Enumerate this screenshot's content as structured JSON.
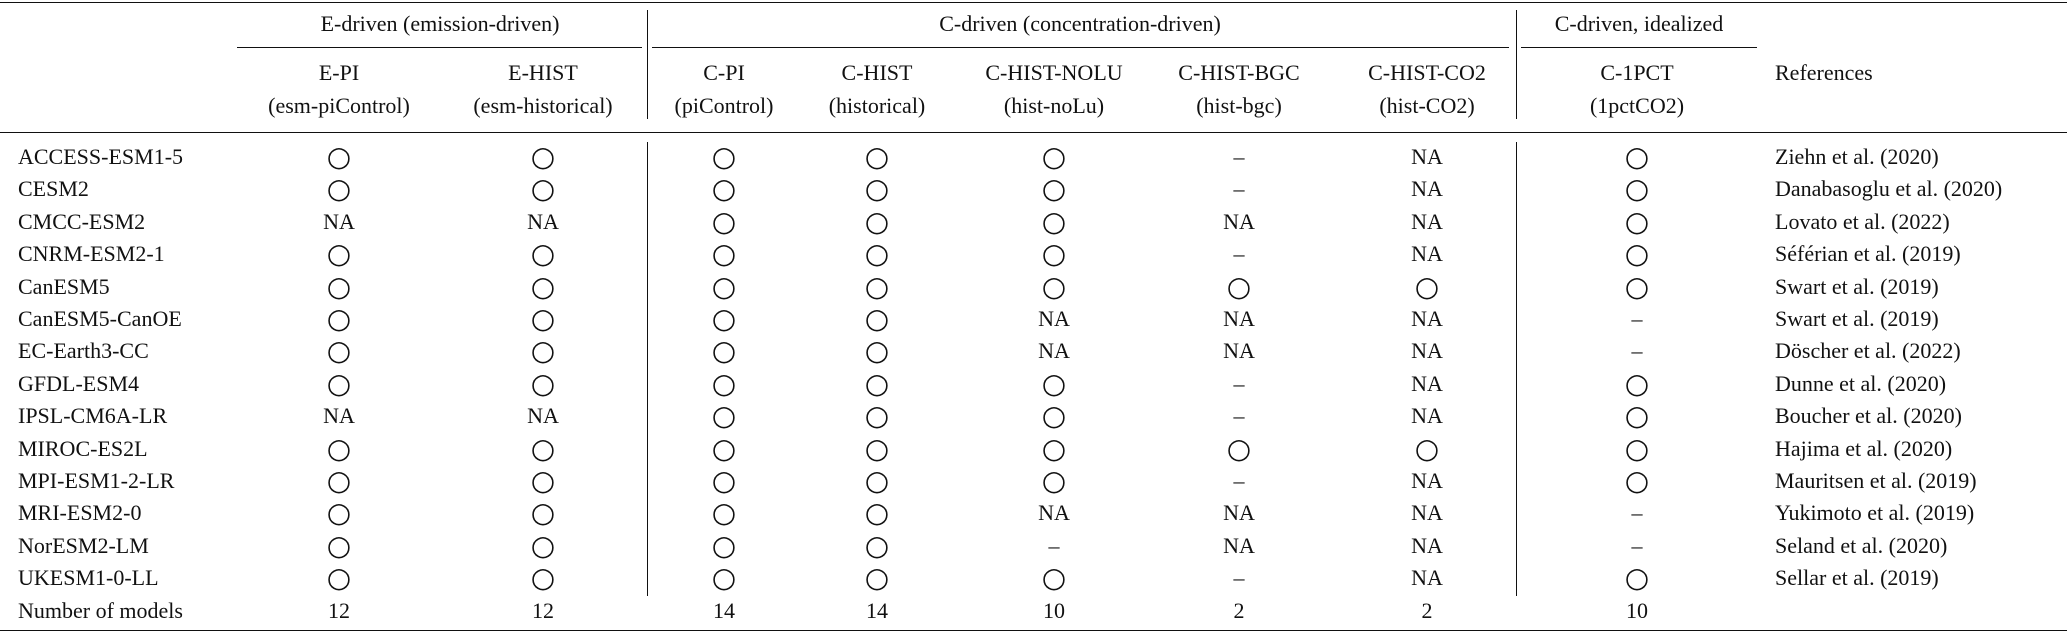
{
  "table": {
    "groups": [
      "E-driven (emission-driven)",
      "C-driven (concentration-driven)",
      "C-driven, idealized"
    ],
    "columns": [
      {
        "name": "E-PI",
        "alias": "(esm-piControl)"
      },
      {
        "name": "E-HIST",
        "alias": "(esm-historical)"
      },
      {
        "name": "C-PI",
        "alias": "(piControl)"
      },
      {
        "name": "C-HIST",
        "alias": "(historical)"
      },
      {
        "name": "C-HIST-NOLU",
        "alias": "(hist-noLu)"
      },
      {
        "name": "C-HIST-BGC",
        "alias": "(hist-bgc)"
      },
      {
        "name": "C-HIST-CO2",
        "alias": "(hist-CO2)"
      },
      {
        "name": "C-1PCT",
        "alias": "(1pctCO2)"
      }
    ],
    "references_header": "References",
    "rows": [
      {
        "model": "ACCESS-ESM1-5",
        "cells": [
          "○",
          "○",
          "○",
          "○",
          "○",
          "–",
          "NA",
          "○"
        ],
        "reference": "Ziehn et al. (2020)"
      },
      {
        "model": "CESM2",
        "cells": [
          "○",
          "○",
          "○",
          "○",
          "○",
          "–",
          "NA",
          "○"
        ],
        "reference": "Danabasoglu et al. (2020)"
      },
      {
        "model": "CMCC-ESM2",
        "cells": [
          "NA",
          "NA",
          "○",
          "○",
          "○",
          "NA",
          "NA",
          "○"
        ],
        "reference": "Lovato et al. (2022)"
      },
      {
        "model": "CNRM-ESM2-1",
        "cells": [
          "○",
          "○",
          "○",
          "○",
          "○",
          "–",
          "NA",
          "○"
        ],
        "reference": "Séférian et al. (2019)"
      },
      {
        "model": "CanESM5",
        "cells": [
          "○",
          "○",
          "○",
          "○",
          "○",
          "○",
          "○",
          "○"
        ],
        "reference": "Swart et al. (2019)"
      },
      {
        "model": "CanESM5-CanOE",
        "cells": [
          "○",
          "○",
          "○",
          "○",
          "NA",
          "NA",
          "NA",
          "–"
        ],
        "reference": "Swart et al. (2019)"
      },
      {
        "model": "EC-Earth3-CC",
        "cells": [
          "○",
          "○",
          "○",
          "○",
          "NA",
          "NA",
          "NA",
          "–"
        ],
        "reference": "Döscher et al. (2022)"
      },
      {
        "model": "GFDL-ESM4",
        "cells": [
          "○",
          "○",
          "○",
          "○",
          "○",
          "–",
          "NA",
          "○"
        ],
        "reference": "Dunne et al. (2020)"
      },
      {
        "model": "IPSL-CM6A-LR",
        "cells": [
          "NA",
          "NA",
          "○",
          "○",
          "○",
          "–",
          "NA",
          "○"
        ],
        "reference": "Boucher et al. (2020)"
      },
      {
        "model": "MIROC-ES2L",
        "cells": [
          "○",
          "○",
          "○",
          "○",
          "○",
          "○",
          "○",
          "○"
        ],
        "reference": "Hajima et al. (2020)"
      },
      {
        "model": "MPI-ESM1-2-LR",
        "cells": [
          "○",
          "○",
          "○",
          "○",
          "○",
          "–",
          "NA",
          "○"
        ],
        "reference": "Mauritsen et al. (2019)"
      },
      {
        "model": "MRI-ESM2-0",
        "cells": [
          "○",
          "○",
          "○",
          "○",
          "NA",
          "NA",
          "NA",
          "–"
        ],
        "reference": "Yukimoto et al. (2019)"
      },
      {
        "model": "NorESM2-LM",
        "cells": [
          "○",
          "○",
          "○",
          "○",
          "–",
          "NA",
          "NA",
          "–"
        ],
        "reference": "Seland et al. (2020)"
      },
      {
        "model": "UKESM1-0-LL",
        "cells": [
          "○",
          "○",
          "○",
          "○",
          "○",
          "–",
          "NA",
          "○"
        ],
        "reference": "Sellar et al. (2019)"
      }
    ],
    "footer": {
      "label": "Number of models",
      "counts": [
        12,
        12,
        14,
        14,
        10,
        2,
        2,
        10
      ]
    }
  }
}
